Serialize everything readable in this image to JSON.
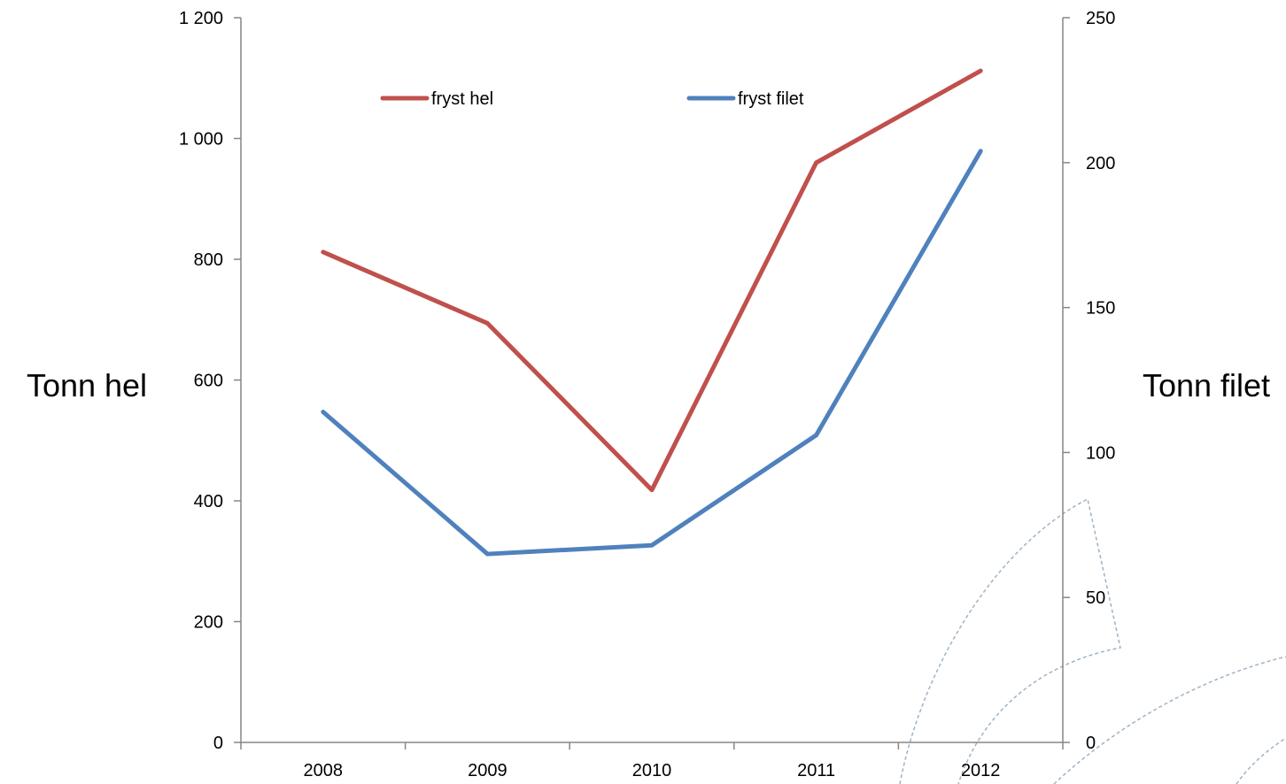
{
  "chart_data": {
    "type": "line",
    "categories": [
      "2008",
      "2009",
      "2010",
      "2011",
      "2012"
    ],
    "series": [
      {
        "name": "fryst hel",
        "axis": "left",
        "color": "#c0504d",
        "values": [
          812,
          694,
          418,
          960,
          1112
        ]
      },
      {
        "name": "fryst filet",
        "axis": "right",
        "color": "#4f81bd",
        "values": [
          114,
          65,
          68,
          106,
          204
        ]
      }
    ],
    "left_axis": {
      "label": "Tonn hel",
      "range": [
        0,
        1200
      ],
      "ticks": [
        0,
        200,
        400,
        600,
        800,
        1000,
        1200
      ],
      "tick_labels": [
        "0",
        "200",
        "400",
        "600",
        "800",
        "1 000",
        "1 200"
      ]
    },
    "right_axis": {
      "label": "Tonn filet",
      "range": [
        0,
        250
      ],
      "ticks": [
        0,
        50,
        100,
        150,
        200,
        250
      ],
      "tick_labels": [
        "0",
        "50",
        "100",
        "150",
        "200",
        "250"
      ]
    },
    "grid": false,
    "legend_position": "top-inside"
  }
}
